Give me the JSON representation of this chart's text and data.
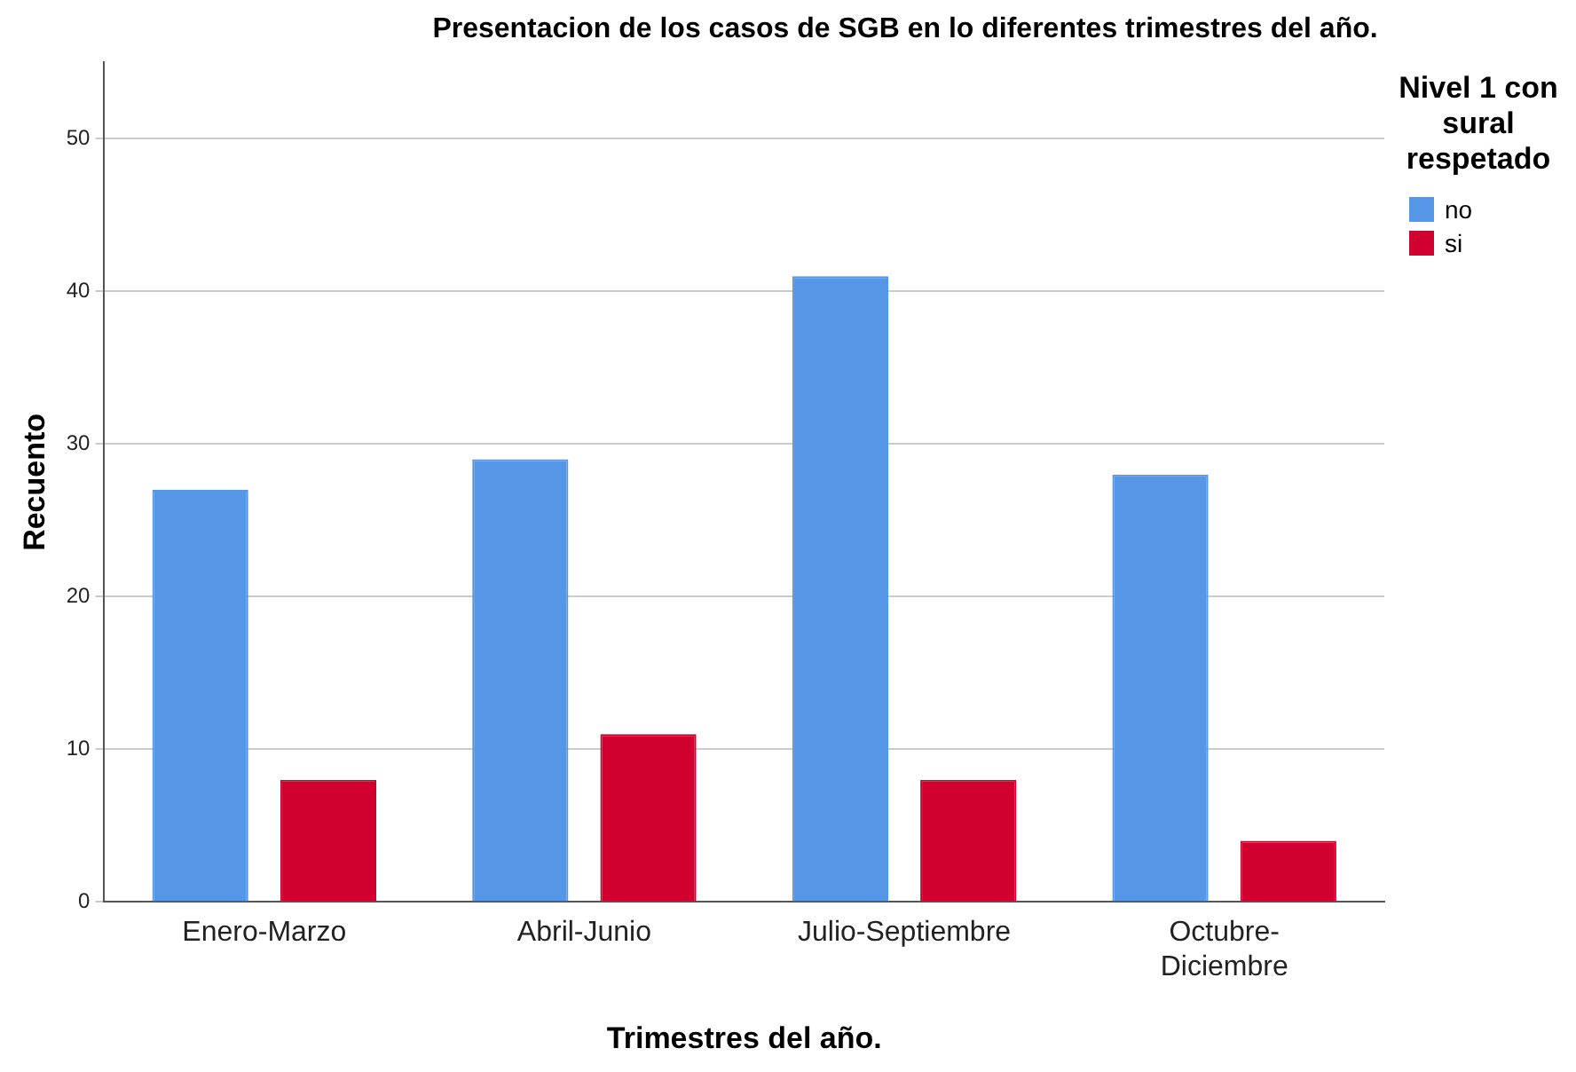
{
  "chart_data": {
    "type": "bar",
    "title": "Presentacion de los casos de SGB en lo diferentes trimestres del año.",
    "xlabel": "Trimestres del año.",
    "ylabel": "Recuento",
    "legend_title": "Nivel 1 con sural respetado",
    "categories": [
      "Enero-Marzo",
      "Abril-Junio",
      "Julio-Septiembre",
      "Octubre-Diciembre"
    ],
    "series": [
      {
        "name": "no",
        "color": "#5596e6",
        "values": [
          27,
          29,
          41,
          28
        ]
      },
      {
        "name": "si",
        "color": "#d2002f",
        "values": [
          8,
          11,
          8,
          4
        ]
      }
    ],
    "ylim": [
      0,
      55
    ],
    "yticks": [
      0,
      10,
      20,
      30,
      40,
      50
    ],
    "grid": "y",
    "legend": "right"
  }
}
